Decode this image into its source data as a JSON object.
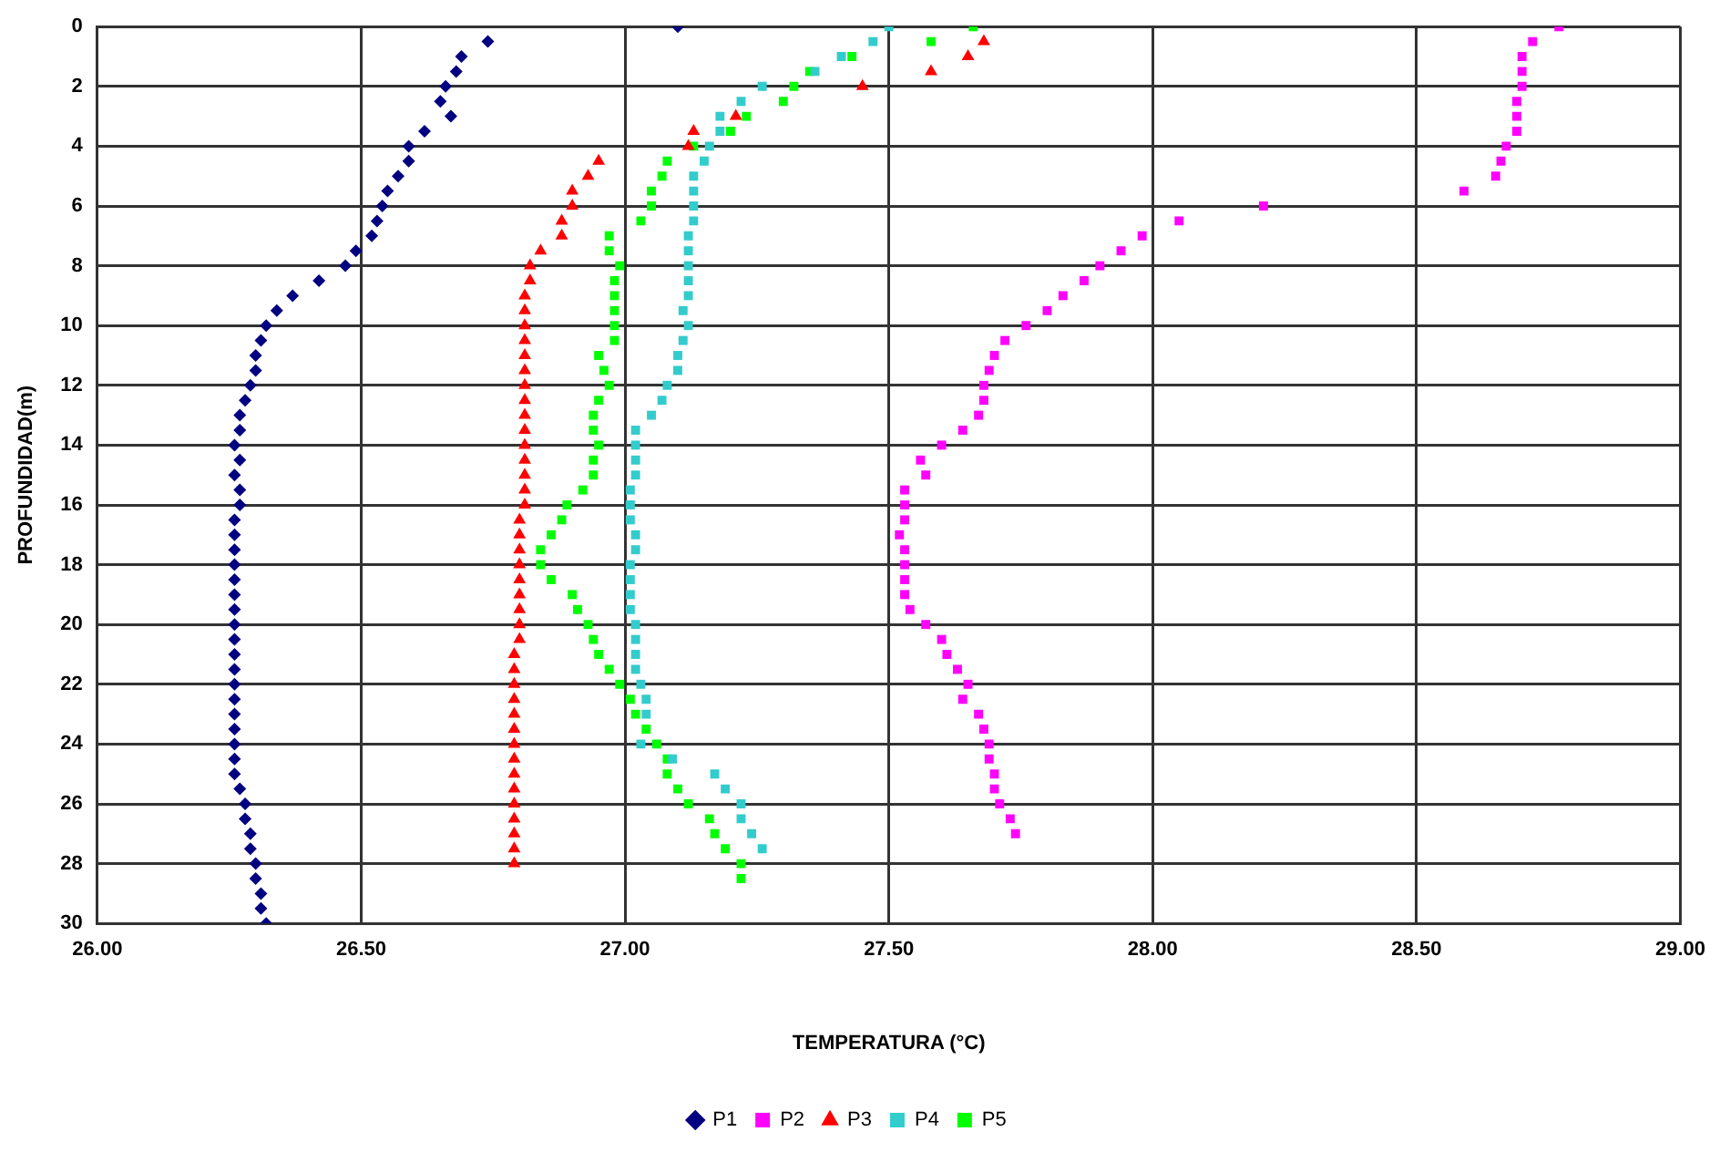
{
  "chart_data": {
    "type": "scatter",
    "xlabel": "TEMPERATURA (°C)",
    "ylabel": "PROFUNDIDAD(m)",
    "xlim": [
      26,
      29
    ],
    "xticks": [
      {
        "value": 26,
        "label": "26.00"
      },
      {
        "value": 26.5,
        "label": "26.50"
      },
      {
        "value": 27,
        "label": "27.00"
      },
      {
        "value": 27.5,
        "label": "27.50"
      },
      {
        "value": 28,
        "label": "28.00"
      },
      {
        "value": 28.5,
        "label": "28.50"
      },
      {
        "value": 29,
        "label": "29.00"
      }
    ],
    "ylim": [
      30,
      0
    ],
    "yticks": [
      0,
      2,
      4,
      6,
      8,
      10,
      12,
      14,
      16,
      18,
      20,
      22,
      24,
      26,
      28,
      30
    ],
    "grid": true,
    "legend": "bottom",
    "series": [
      {
        "name": "P1",
        "color": "#000080",
        "marker": "diamond",
        "x": [
          27.1,
          26.74,
          26.69,
          26.68,
          26.66,
          26.65,
          26.67,
          26.62,
          26.59,
          26.59,
          26.57,
          26.55,
          26.54,
          26.53,
          26.52,
          26.49,
          26.47,
          26.42,
          26.37,
          26.34,
          26.32,
          26.31,
          26.3,
          26.3,
          26.29,
          26.28,
          26.27,
          26.27,
          26.26,
          26.27,
          26.26,
          26.27,
          26.27,
          26.26,
          26.26,
          26.26,
          26.26,
          26.26,
          26.26,
          26.26,
          26.26,
          26.26,
          26.26,
          26.26,
          26.26,
          26.26,
          26.26,
          26.26,
          26.26,
          26.26,
          26.26,
          26.27,
          26.28,
          26.28,
          26.29,
          26.29,
          26.3,
          26.3,
          26.31,
          26.31,
          26.32
        ],
        "values": [
          0,
          0.5,
          1,
          1.5,
          2,
          2.5,
          3,
          3.5,
          4,
          4.5,
          5,
          5.5,
          6,
          6.5,
          7,
          7.5,
          8,
          8.5,
          9,
          9.5,
          10,
          10.5,
          11,
          11.5,
          12,
          12.5,
          13,
          13.5,
          14,
          14.5,
          15,
          15.5,
          16,
          16.5,
          17,
          17.5,
          18,
          18.5,
          19,
          19.5,
          20,
          20.5,
          21,
          21.5,
          22,
          22.5,
          23,
          23.5,
          24,
          24.5,
          25,
          25.5,
          26,
          26.5,
          27,
          27.5,
          28,
          28.5,
          29,
          29.5,
          30
        ]
      },
      {
        "name": "P2",
        "color": "#ff00ff",
        "marker": "square",
        "x": [
          28.77,
          28.72,
          28.7,
          28.7,
          28.7,
          28.69,
          28.69,
          28.69,
          28.67,
          28.66,
          28.65,
          28.59,
          28.21,
          28.05,
          27.98,
          27.94,
          27.9,
          27.87,
          27.83,
          27.8,
          27.76,
          27.72,
          27.7,
          27.69,
          27.68,
          27.68,
          27.67,
          27.64,
          27.6,
          27.56,
          27.57,
          27.53,
          27.53,
          27.53,
          27.52,
          27.53,
          27.53,
          27.53,
          27.53,
          27.54,
          27.57,
          27.6,
          27.61,
          27.63,
          27.65,
          27.64,
          27.67,
          27.68,
          27.69,
          27.69,
          27.7,
          27.7,
          27.71,
          27.73,
          27.74
        ],
        "values": [
          0,
          0.5,
          1,
          1.5,
          2,
          2.5,
          3,
          3.5,
          4,
          4.5,
          5,
          5.5,
          6,
          6.5,
          7,
          7.5,
          8,
          8.5,
          9,
          9.5,
          10,
          10.5,
          11,
          11.5,
          12,
          12.5,
          13,
          13.5,
          14,
          14.5,
          15,
          15.5,
          16,
          16.5,
          17,
          17.5,
          18,
          18.5,
          19,
          19.5,
          20,
          20.5,
          21,
          21.5,
          22,
          22.5,
          23,
          23.5,
          24,
          24.5,
          25,
          25.5,
          26,
          26.5,
          27
        ]
      },
      {
        "name": "P3",
        "color": "#ff0000",
        "marker": "triangle",
        "x": [
          27.68,
          27.65,
          27.58,
          27.45,
          27.21,
          27.13,
          27.12,
          26.95,
          26.93,
          26.9,
          26.9,
          26.88,
          26.88,
          26.84,
          26.82,
          26.82,
          26.81,
          26.81,
          26.81,
          26.81,
          26.81,
          26.81,
          26.81,
          26.81,
          26.81,
          26.81,
          26.81,
          26.81,
          26.81,
          26.81,
          26.81,
          26.8,
          26.8,
          26.8,
          26.8,
          26.8,
          26.8,
          26.8,
          26.8,
          26.8,
          26.79,
          26.79,
          26.79,
          26.79,
          26.79,
          26.79,
          26.79,
          26.79,
          26.79,
          26.79,
          26.79,
          26.79,
          26.79,
          26.79,
          26.79
        ],
        "values": [
          0.5,
          1,
          1.5,
          2,
          3,
          3.5,
          4,
          4.5,
          5,
          5.5,
          6,
          6.5,
          7,
          7.5,
          8,
          8.5,
          9,
          9.5,
          10,
          10.5,
          11,
          11.5,
          12,
          12.5,
          13,
          13.5,
          14,
          14.5,
          15,
          15.5,
          16,
          16.5,
          17,
          17.5,
          18,
          18.5,
          19,
          19.5,
          20,
          20.5,
          21,
          21.5,
          22,
          22.5,
          23,
          23.5,
          24,
          24.5,
          25,
          25.5,
          26,
          26.5,
          27,
          27.5,
          28
        ]
      },
      {
        "name": "P4",
        "color": "#33cccc",
        "marker": "square",
        "x": [
          27.5,
          27.47,
          27.41,
          27.36,
          27.26,
          27.22,
          27.18,
          27.18,
          27.16,
          27.15,
          27.13,
          27.13,
          27.13,
          27.13,
          27.12,
          27.12,
          27.12,
          27.12,
          27.12,
          27.11,
          27.12,
          27.11,
          27.1,
          27.1,
          27.08,
          27.07,
          27.05,
          27.02,
          27.02,
          27.02,
          27.02,
          27.01,
          27.01,
          27.01,
          27.02,
          27.02,
          27.01,
          27.01,
          27.01,
          27.01,
          27.02,
          27.02,
          27.02,
          27.02,
          27.03,
          27.04,
          27.04,
          null,
          27.03,
          27.09,
          27.17,
          27.19,
          27.22,
          27.22,
          27.24,
          27.26
        ],
        "values": [
          0,
          0.5,
          1,
          1.5,
          2,
          2.5,
          3,
          3.5,
          4,
          4.5,
          5,
          5.5,
          6,
          6.5,
          7,
          7.5,
          8,
          8.5,
          9,
          9.5,
          10,
          10.5,
          11,
          11.5,
          12,
          12.5,
          13,
          13.5,
          14,
          14.5,
          15,
          15.5,
          16,
          16.5,
          17,
          17.5,
          18,
          18.5,
          19,
          19.5,
          20,
          20.5,
          21,
          21.5,
          22,
          22.5,
          23,
          null,
          24,
          24.5,
          25,
          25.5,
          26,
          26.5,
          27,
          27.5
        ]
      },
      {
        "name": "P5",
        "color": "#00ff00",
        "marker": "square",
        "x": [
          27.66,
          27.58,
          27.43,
          27.35,
          27.32,
          27.3,
          27.23,
          27.2,
          27.13,
          27.08,
          27.07,
          27.05,
          27.05,
          27.03,
          26.97,
          26.97,
          26.99,
          26.98,
          26.98,
          26.98,
          26.98,
          26.98,
          26.95,
          26.96,
          26.97,
          26.95,
          26.94,
          26.94,
          26.95,
          26.94,
          26.94,
          26.92,
          26.89,
          26.88,
          26.86,
          26.84,
          26.84,
          26.86,
          26.9,
          26.91,
          26.93,
          26.94,
          26.95,
          26.97,
          26.99,
          27.01,
          27.02,
          27.04,
          27.06,
          27.08,
          27.08,
          27.1,
          27.12,
          27.16,
          27.17,
          27.19,
          27.22,
          27.22
        ],
        "values": [
          0,
          0.5,
          1,
          1.5,
          2,
          2.5,
          3,
          3.5,
          4,
          4.5,
          5,
          5.5,
          6,
          6.5,
          7,
          7.5,
          8,
          8.5,
          9,
          9.5,
          10,
          10.5,
          11,
          11.5,
          12,
          12.5,
          13,
          13.5,
          14,
          14.5,
          15,
          15.5,
          16,
          16.5,
          17,
          17.5,
          18,
          18.5,
          19,
          19.5,
          20,
          20.5,
          21,
          21.5,
          22,
          22.5,
          23,
          23.5,
          24,
          24.5,
          25,
          25.5,
          26,
          26.5,
          27,
          27.5,
          28,
          28.5
        ]
      }
    ]
  }
}
